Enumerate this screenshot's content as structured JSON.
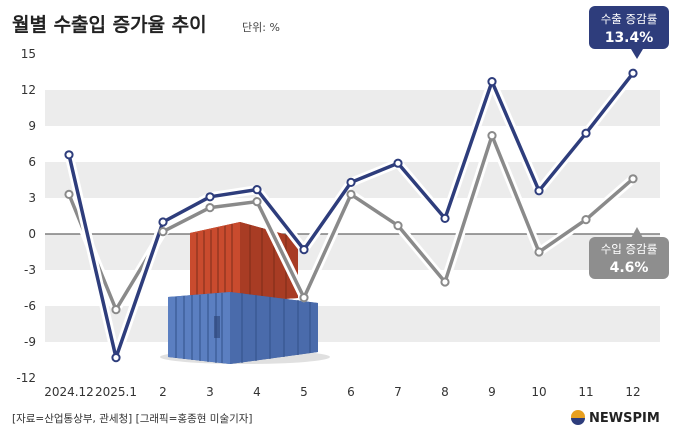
{
  "title": "월별 수출입 증가율 추이",
  "unit": "단위: %",
  "source": "[자료=산업통상부, 관세청] [그래픽=홍종현 미술기자]",
  "logo": "NEWSPIM",
  "colors": {
    "export": "#2e3d7c",
    "import": "#8a8a8a",
    "band": "#ececec",
    "badge_export": "#2e3d7c",
    "badge_import": "#8e8e8e"
  },
  "chart_data": {
    "type": "line",
    "title": "월별 수출입 증가율 추이",
    "ylabel": "단위: %",
    "xlabel": "",
    "ylim": [
      -12,
      15
    ],
    "yticks": [
      "15",
      "12",
      "9",
      "6",
      "3",
      "0",
      "-3",
      "-6",
      "-9",
      "-12"
    ],
    "categories": [
      "2024.12",
      "2025.1",
      "2",
      "3",
      "4",
      "5",
      "6",
      "7",
      "8",
      "9",
      "10",
      "11",
      "12"
    ],
    "series": [
      {
        "name": "수출 증감률",
        "values": [
          6.6,
          -10.3,
          1.0,
          3.1,
          3.7,
          -1.3,
          4.3,
          5.9,
          1.3,
          12.7,
          3.6,
          8.4,
          13.4
        ]
      },
      {
        "name": "수입 증감률",
        "values": [
          3.3,
          -6.3,
          0.2,
          2.2,
          2.7,
          -5.3,
          3.3,
          0.7,
          -4.0,
          8.2,
          -1.5,
          1.2,
          4.6
        ]
      }
    ],
    "callouts": [
      {
        "label": "수출 증감률",
        "value": "13.4%"
      },
      {
        "label": "수입 증감률",
        "value": "4.6%"
      }
    ],
    "grid": "alternating horizontal bands",
    "legend": "callout labels at right end of each series"
  }
}
